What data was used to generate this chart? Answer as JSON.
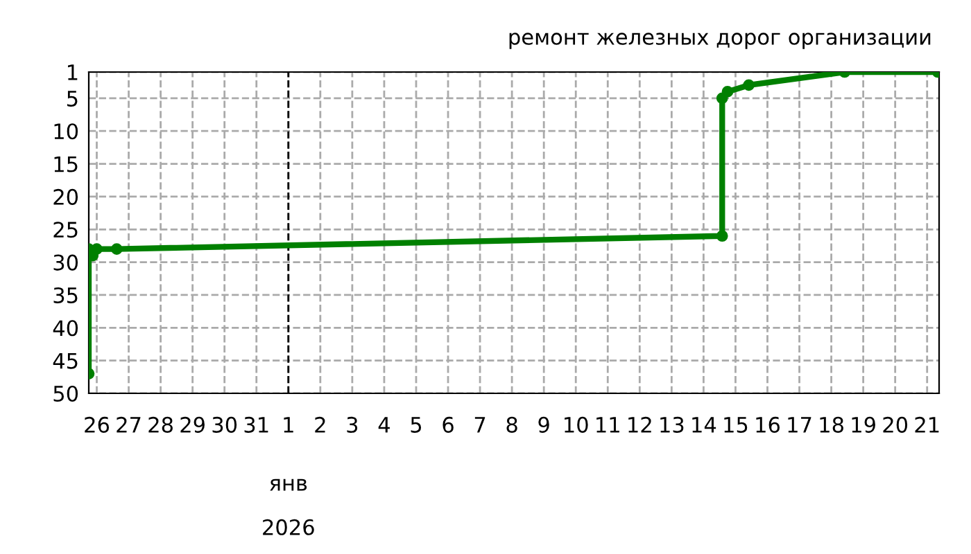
{
  "chart_data": {
    "type": "line",
    "title": "ремонт железных дорог организации",
    "x": [
      "2025-12-25T18:00",
      "2025-12-25T18:00",
      "2025-12-25T21:00",
      "2025-12-26T00:00",
      "2025-12-26T15:00",
      "2026-01-14T14:00",
      "2026-01-14T14:00",
      "2026-01-14T18:00",
      "2026-01-15T10:00",
      "2026-01-18T10:00",
      "2026-01-21T08:00"
    ],
    "series": [
      {
        "color": "#008000",
        "values": [
          47,
          28,
          29,
          28,
          28,
          26,
          5,
          4,
          3,
          1,
          1
        ]
      }
    ],
    "marker": "circle",
    "line_style": "solid",
    "xlim": [
      "2025-12-25T18:00",
      "2026-01-21T09:00"
    ],
    "xticks": [
      {
        "value": "2025-12-26",
        "label": "26"
      },
      {
        "value": "2025-12-27",
        "label": "27"
      },
      {
        "value": "2025-12-28",
        "label": "28"
      },
      {
        "value": "2025-12-29",
        "label": "29"
      },
      {
        "value": "2025-12-30",
        "label": "30"
      },
      {
        "value": "2025-12-31",
        "label": "31"
      },
      {
        "value": "2026-01-01",
        "label": "1"
      },
      {
        "value": "2026-01-02",
        "label": "2"
      },
      {
        "value": "2026-01-03",
        "label": "3"
      },
      {
        "value": "2026-01-04",
        "label": "4"
      },
      {
        "value": "2026-01-05",
        "label": "5"
      },
      {
        "value": "2026-01-06",
        "label": "6"
      },
      {
        "value": "2026-01-07",
        "label": "7"
      },
      {
        "value": "2026-01-08",
        "label": "8"
      },
      {
        "value": "2026-01-09",
        "label": "9"
      },
      {
        "value": "2026-01-10",
        "label": "10"
      },
      {
        "value": "2026-01-11",
        "label": "11"
      },
      {
        "value": "2026-01-12",
        "label": "12"
      },
      {
        "value": "2026-01-13",
        "label": "13"
      },
      {
        "value": "2026-01-14",
        "label": "14"
      },
      {
        "value": "2026-01-15",
        "label": "15"
      },
      {
        "value": "2026-01-16",
        "label": "16"
      },
      {
        "value": "2026-01-17",
        "label": "17"
      },
      {
        "value": "2026-01-18",
        "label": "18"
      },
      {
        "value": "2026-01-19",
        "label": "19"
      },
      {
        "value": "2026-01-20",
        "label": "20"
      },
      {
        "value": "2026-01-21",
        "label": "21"
      }
    ],
    "ylim": [
      50,
      1
    ],
    "yticks": [
      1,
      5,
      10,
      15,
      20,
      25,
      30,
      35,
      40,
      45,
      50
    ],
    "grid": true,
    "ref_lines": [
      {
        "axis": "x",
        "value": "2026-01-01",
        "label": null,
        "color": "#000000",
        "line_style": "dashed"
      }
    ],
    "annotations": [
      "янв",
      "2026"
    ]
  }
}
